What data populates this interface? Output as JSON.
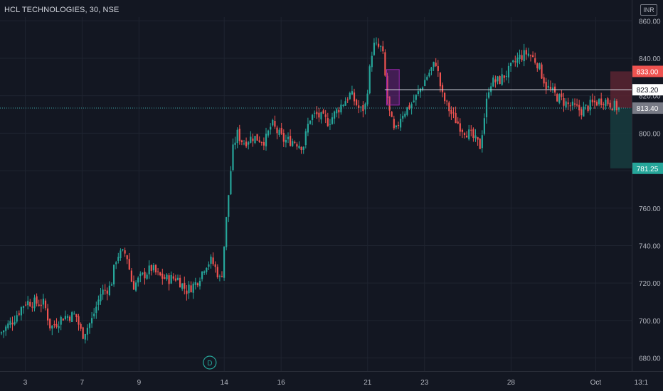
{
  "header": {
    "title": "HCL TECHNOLOGIES, 30, NSE",
    "currency": "INR"
  },
  "colors": {
    "background": "#131722",
    "grid": "#1f2430",
    "up": "#26a69a",
    "down": "#ef5350",
    "axis_text": "#b2b5be",
    "last_price_label": "#787b86",
    "target_label": "#ef5350",
    "stop_label": "#26a69a",
    "marker_box": "#9c27b0"
  },
  "chart_data": {
    "type": "candlestick",
    "y_ticks": [
      680,
      700,
      720,
      740,
      760,
      780,
      800,
      820,
      840,
      860
    ],
    "ylim": [
      673,
      862
    ],
    "x_ticks": [
      {
        "label": "3",
        "pos": 0.04
      },
      {
        "label": "7",
        "pos": 0.13
      },
      {
        "label": "9",
        "pos": 0.22
      },
      {
        "label": "14",
        "pos": 0.355
      },
      {
        "label": "16",
        "pos": 0.445
      },
      {
        "label": "21",
        "pos": 0.582
      },
      {
        "label": "23",
        "pos": 0.672
      },
      {
        "label": "28",
        "pos": 0.809
      },
      {
        "label": "Oct",
        "pos": 0.943
      },
      {
        "label": "13:1",
        "pos": 1.015
      }
    ],
    "price_labels": {
      "target": "833.00",
      "line": "823.20",
      "last": "813.40",
      "stop": "781.25"
    },
    "levels": {
      "target": 833.0,
      "line": 823.2,
      "last": 813.4,
      "stop": 781.25
    },
    "event_marker": {
      "label": "D",
      "date": "14"
    },
    "close_path": [
      [
        0,
        693
      ],
      [
        0.02,
        700
      ],
      [
        0.04,
        710
      ],
      [
        0.07,
        709
      ],
      [
        0.08,
        696
      ],
      [
        0.1,
        702
      ],
      [
        0.12,
        703
      ],
      [
        0.13,
        692
      ],
      [
        0.145,
        700
      ],
      [
        0.16,
        715
      ],
      [
        0.175,
        718
      ],
      [
        0.185,
        735
      ],
      [
        0.2,
        736
      ],
      [
        0.21,
        718
      ],
      [
        0.22,
        722
      ],
      [
        0.24,
        728
      ],
      [
        0.25,
        724
      ],
      [
        0.265,
        722
      ],
      [
        0.28,
        723
      ],
      [
        0.295,
        716
      ],
      [
        0.31,
        720
      ],
      [
        0.32,
        726
      ],
      [
        0.325,
        730
      ],
      [
        0.335,
        732
      ],
      [
        0.345,
        725
      ],
      [
        0.35,
        720
      ],
      [
        0.356,
        745
      ],
      [
        0.362,
        768
      ],
      [
        0.368,
        790
      ],
      [
        0.375,
        800
      ],
      [
        0.385,
        795
      ],
      [
        0.4,
        798
      ],
      [
        0.42,
        796
      ],
      [
        0.43,
        805
      ],
      [
        0.44,
        800
      ],
      [
        0.45,
        796
      ],
      [
        0.465,
        796
      ],
      [
        0.48,
        793
      ],
      [
        0.49,
        808
      ],
      [
        0.5,
        810
      ],
      [
        0.52,
        806
      ],
      [
        0.54,
        815
      ],
      [
        0.555,
        821
      ],
      [
        0.57,
        812
      ],
      [
        0.578,
        814
      ],
      [
        0.584,
        830
      ],
      [
        0.59,
        847
      ],
      [
        0.605,
        845
      ],
      [
        0.615,
        813
      ],
      [
        0.625,
        799
      ],
      [
        0.635,
        810
      ],
      [
        0.65,
        815
      ],
      [
        0.66,
        820
      ],
      [
        0.675,
        830
      ],
      [
        0.69,
        838
      ],
      [
        0.7,
        820
      ],
      [
        0.715,
        810
      ],
      [
        0.73,
        803
      ],
      [
        0.745,
        799
      ],
      [
        0.76,
        793
      ],
      [
        0.765,
        805
      ],
      [
        0.775,
        827
      ],
      [
        0.79,
        828
      ],
      [
        0.805,
        833
      ],
      [
        0.82,
        840
      ],
      [
        0.835,
        843
      ],
      [
        0.85,
        838
      ],
      [
        0.865,
        825
      ],
      [
        0.88,
        820
      ],
      [
        0.9,
        815
      ],
      [
        0.92,
        812
      ],
      [
        0.94,
        816
      ],
      [
        0.955,
        818
      ],
      [
        0.98,
        813
      ]
    ]
  }
}
